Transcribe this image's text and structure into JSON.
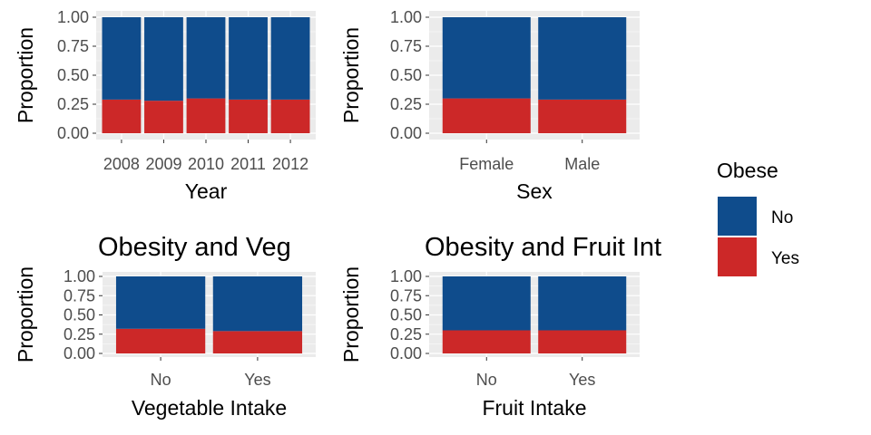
{
  "colors": {
    "No": "#0f4c8c",
    "Yes": "#cc2828",
    "panel_bg": "#ebebeb",
    "grid": "#ffffff"
  },
  "legend": {
    "title": "Obese",
    "items": [
      {
        "key": "No",
        "label": "No"
      },
      {
        "key": "Yes",
        "label": "Yes"
      }
    ]
  },
  "chart_data": [
    {
      "type": "bar",
      "stacked": true,
      "title": "",
      "xlabel": "Year",
      "ylabel": "Proportion",
      "categories": [
        "2008",
        "2009",
        "2010",
        "2011",
        "2012"
      ],
      "series": [
        {
          "name": "Yes",
          "values": [
            0.29,
            0.28,
            0.3,
            0.29,
            0.29
          ]
        },
        {
          "name": "No",
          "values": [
            0.71,
            0.72,
            0.7,
            0.71,
            0.71
          ]
        }
      ],
      "ylim": [
        0,
        1
      ],
      "yticks": [
        "0.00",
        "0.25",
        "0.50",
        "0.75",
        "1.00"
      ]
    },
    {
      "type": "bar",
      "stacked": true,
      "title": "",
      "xlabel": "Sex",
      "ylabel": "Proportion",
      "categories": [
        "Female",
        "Male"
      ],
      "series": [
        {
          "name": "Yes",
          "values": [
            0.3,
            0.29
          ]
        },
        {
          "name": "No",
          "values": [
            0.7,
            0.71
          ]
        }
      ],
      "ylim": [
        0,
        1
      ],
      "yticks": [
        "0.00",
        "0.25",
        "0.50",
        "0.75",
        "1.00"
      ]
    },
    {
      "type": "bar",
      "stacked": true,
      "title": "Obesity and Veg",
      "xlabel": "Vegetable Intake",
      "ylabel": "Proportion",
      "categories": [
        "No",
        "Yes"
      ],
      "series": [
        {
          "name": "Yes",
          "values": [
            0.32,
            0.29
          ]
        },
        {
          "name": "No",
          "values": [
            0.68,
            0.71
          ]
        }
      ],
      "ylim": [
        0,
        1
      ],
      "yticks": [
        "0.00",
        "0.25",
        "0.50",
        "0.75",
        "1.00"
      ]
    },
    {
      "type": "bar",
      "stacked": true,
      "title": "Obesity and Fruit Int",
      "xlabel": "Fruit Intake",
      "ylabel": "Proportion",
      "categories": [
        "No",
        "Yes"
      ],
      "series": [
        {
          "name": "Yes",
          "values": [
            0.3,
            0.3
          ]
        },
        {
          "name": "No",
          "values": [
            0.7,
            0.7
          ]
        }
      ],
      "ylim": [
        0,
        1
      ],
      "yticks": [
        "0.00",
        "0.25",
        "0.50",
        "0.75",
        "1.00"
      ]
    }
  ]
}
